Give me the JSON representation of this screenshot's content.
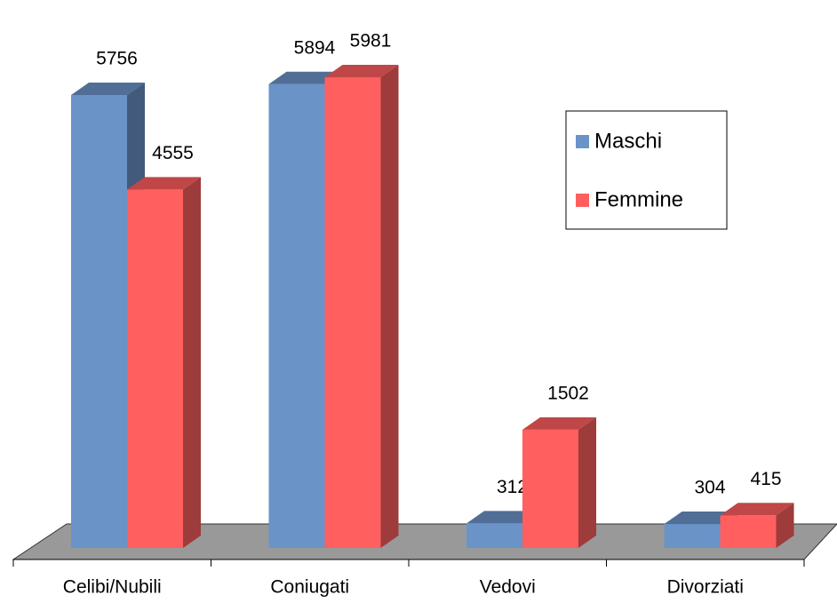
{
  "chart_data": {
    "type": "bar3d",
    "categories": [
      "Celibi/Nubili",
      "Coniugati",
      "Vedovi",
      "Divorziati"
    ],
    "series": [
      {
        "name": "Maschi",
        "color": "#6a93c8",
        "values": [
          5756,
          5894,
          312,
          304
        ]
      },
      {
        "name": "Femmine",
        "color": "#ff5f5f",
        "values": [
          4555,
          5981,
          1502,
          415
        ]
      }
    ]
  }
}
